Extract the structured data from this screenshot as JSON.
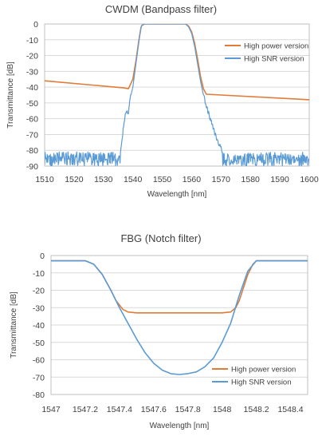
{
  "chart_data": [
    {
      "type": "line",
      "title": "CWDM (Bandpass filter)",
      "xlabel": "Wavelength [nm]",
      "ylabel": "Transmittance [dB]",
      "xlim": [
        1510,
        1600
      ],
      "ylim": [
        -90,
        0
      ],
      "xticks": [
        1510,
        1520,
        1530,
        1540,
        1550,
        1560,
        1570,
        1580,
        1590,
        1600
      ],
      "yticks": [
        0,
        -10,
        -20,
        -30,
        -40,
        -50,
        -60,
        -70,
        -80,
        -90
      ],
      "grid": "horizontal",
      "legend": "right",
      "series": [
        {
          "name": "High power version",
          "color": "#e07b39",
          "x": [
            1510,
            1537,
            1538.5,
            1540,
            1541,
            1542,
            1542.7,
            1543,
            1544,
            1558,
            1559,
            1560,
            1561,
            1562,
            1563,
            1564,
            1565,
            1600
          ],
          "y": [
            -36,
            -40.5,
            -41,
            -35,
            -24,
            -11,
            -3,
            -1,
            0,
            0,
            -1.5,
            -5,
            -12,
            -22,
            -33,
            -41,
            -44.5,
            -48
          ]
        },
        {
          "name": "High SNR version",
          "color": "#5b9bd5",
          "noise_floor": [
            -90,
            -81
          ],
          "x": [
            1510,
            1535.5,
            1536.2,
            1537,
            1537.5,
            1538,
            1538.5,
            1539,
            1540,
            1541,
            1542,
            1542.7,
            1543,
            1544,
            1558,
            1559,
            1560,
            1561,
            1562,
            1563,
            1564,
            1565,
            1566,
            1567,
            1568,
            1569,
            1570,
            1571,
            1572,
            1572.5,
            1600
          ],
          "y": [
            -85,
            -85,
            -75,
            -62,
            -56,
            -55,
            -56,
            -48,
            -40,
            -26,
            -12,
            -3,
            -1,
            0,
            0,
            -2,
            -6,
            -14,
            -25,
            -36,
            -45,
            -52,
            -58,
            -64,
            -70,
            -75,
            -79,
            -82,
            -84,
            -85,
            -85
          ]
        }
      ]
    },
    {
      "type": "line",
      "title": "FBG (Notch filter)",
      "xlabel": "Wavelength [nm]",
      "ylabel": "Transmittance [dB]",
      "xlim": [
        1547,
        1548.5
      ],
      "ylim": [
        -80,
        0
      ],
      "xticks": [
        "1547",
        "1547.2",
        "1547.4",
        "1547.6",
        "1547.8",
        "1548",
        "1548.2",
        "1548.4"
      ],
      "yticks": [
        0,
        -10,
        -20,
        -30,
        -40,
        -50,
        -60,
        -70,
        -80
      ],
      "grid": "horizontal",
      "legend": "bottom-right",
      "series": [
        {
          "name": "High power version",
          "color": "#e07b39",
          "x": [
            1547,
            1547.2,
            1547.25,
            1547.3,
            1547.35,
            1547.38,
            1547.42,
            1547.45,
            1547.5,
            1547.6,
            1547.8,
            1548,
            1548.05,
            1548.08,
            1548.1,
            1548.12,
            1548.15,
            1548.18,
            1548.2,
            1548.5
          ],
          "y": [
            -3,
            -3,
            -5,
            -11,
            -20,
            -26,
            -31,
            -32.5,
            -33,
            -33,
            -33,
            -33,
            -32.5,
            -30,
            -26,
            -20,
            -11,
            -5,
            -3,
            -3
          ]
        },
        {
          "name": "High SNR version",
          "color": "#5b9bd5",
          "x": [
            1547,
            1547.2,
            1547.25,
            1547.3,
            1547.35,
            1547.4,
            1547.45,
            1547.5,
            1547.55,
            1547.6,
            1547.65,
            1547.7,
            1547.75,
            1547.8,
            1547.85,
            1547.9,
            1547.95,
            1548,
            1548.05,
            1548.1,
            1548.15,
            1548.2,
            1548.5
          ],
          "y": [
            -3,
            -3,
            -5,
            -11,
            -20,
            -30,
            -39,
            -48,
            -56,
            -62,
            -66,
            -68,
            -68.5,
            -68,
            -67,
            -64,
            -59,
            -50,
            -39,
            -23,
            -9,
            -3,
            -3
          ]
        }
      ]
    }
  ]
}
